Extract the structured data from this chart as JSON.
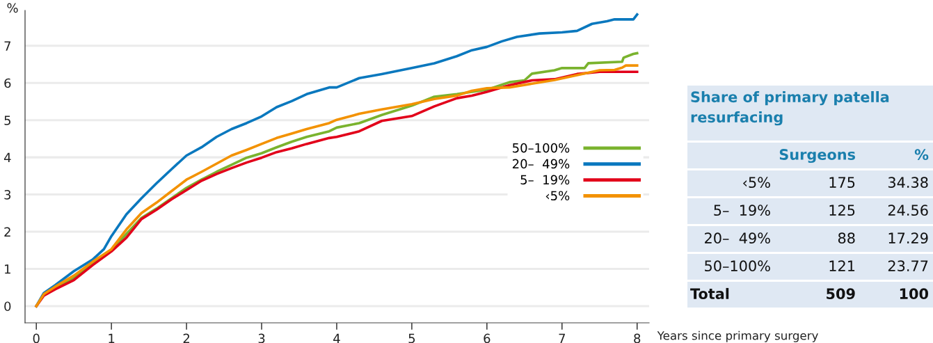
{
  "chart_data": [
    {
      "type": "line",
      "ylabel": "%",
      "xlabel": "Years since primary surgery",
      "xlim": [
        -0.15,
        8.16
      ],
      "ylim": [
        -0.45,
        7.95
      ],
      "xticks": [
        0,
        1,
        2,
        3,
        4,
        5,
        6,
        7,
        8
      ],
      "yticks": [
        0,
        1,
        2,
        3,
        4,
        5,
        6,
        7
      ],
      "grid": "y",
      "legend": "right",
      "line_style": "solid",
      "series": [
        {
          "name": "50–100%",
          "color": "#7ab32e",
          "x": [
            0,
            0.1,
            0.25,
            0.5,
            0.75,
            1.0,
            1.2,
            1.4,
            1.6,
            1.8,
            2.0,
            2.2,
            2.4,
            2.6,
            2.8,
            3.0,
            3.2,
            3.4,
            3.6,
            3.9,
            4.0,
            4.3,
            4.6,
            5.0,
            5.3,
            5.6,
            5.8,
            6.0,
            6.3,
            6.5,
            6.6,
            6.9,
            7.0,
            7.3,
            7.35,
            7.8,
            7.82,
            7.95,
            8.0
          ],
          "values": [
            0,
            0.3,
            0.5,
            0.76,
            1.13,
            1.5,
            1.94,
            2.37,
            2.62,
            2.9,
            3.18,
            3.4,
            3.61,
            3.8,
            3.99,
            4.11,
            4.27,
            4.42,
            4.55,
            4.7,
            4.8,
            4.92,
            5.14,
            5.39,
            5.63,
            5.7,
            5.76,
            5.82,
            6.02,
            6.07,
            6.25,
            6.34,
            6.4,
            6.4,
            6.53,
            6.57,
            6.68,
            6.78,
            6.8
          ]
        },
        {
          "name": "20–  49%",
          "color": "#0a78be",
          "x": [
            0,
            0.1,
            0.25,
            0.5,
            0.75,
            0.9,
            1.0,
            1.2,
            1.4,
            1.6,
            1.8,
            2.0,
            2.2,
            2.4,
            2.6,
            2.8,
            3.0,
            3.2,
            3.4,
            3.6,
            3.9,
            4.0,
            4.3,
            4.6,
            5.0,
            5.3,
            5.6,
            5.8,
            6.0,
            6.2,
            6.4,
            6.7,
            7.0,
            7.2,
            7.4,
            7.6,
            7.7,
            7.95,
            8.0
          ],
          "values": [
            0,
            0.35,
            0.56,
            0.94,
            1.25,
            1.53,
            1.88,
            2.47,
            2.9,
            3.3,
            3.68,
            4.05,
            4.27,
            4.55,
            4.76,
            4.92,
            5.1,
            5.35,
            5.51,
            5.7,
            5.88,
            5.88,
            6.13,
            6.24,
            6.4,
            6.53,
            6.72,
            6.88,
            6.97,
            7.12,
            7.24,
            7.33,
            7.36,
            7.4,
            7.59,
            7.66,
            7.71,
            7.71,
            7.84
          ]
        },
        {
          "name": "5–  19%",
          "color": "#e2001a",
          "x": [
            0,
            0.1,
            0.25,
            0.5,
            0.75,
            1.0,
            1.2,
            1.4,
            1.6,
            1.8,
            2.0,
            2.2,
            2.4,
            2.6,
            2.8,
            3.0,
            3.2,
            3.4,
            3.6,
            3.9,
            4.0,
            4.3,
            4.6,
            5.0,
            5.3,
            5.6,
            5.8,
            6.0,
            6.3,
            6.6,
            6.9,
            7.2,
            7.5,
            8.0
          ],
          "values": [
            0,
            0.28,
            0.45,
            0.7,
            1.1,
            1.47,
            1.84,
            2.34,
            2.59,
            2.87,
            3.12,
            3.37,
            3.55,
            3.71,
            3.86,
            3.99,
            4.14,
            4.24,
            4.36,
            4.52,
            4.55,
            4.7,
            4.98,
            5.11,
            5.37,
            5.59,
            5.66,
            5.76,
            5.94,
            6.07,
            6.1,
            6.24,
            6.3,
            6.3
          ]
        },
        {
          "name": "‹5%",
          "color": "#f39200",
          "x": [
            0,
            0.1,
            0.25,
            0.5,
            0.75,
            1.0,
            1.2,
            1.4,
            1.6,
            1.8,
            2.0,
            2.2,
            2.4,
            2.6,
            2.8,
            3.0,
            3.2,
            3.4,
            3.6,
            3.9,
            4.0,
            4.3,
            4.6,
            5.0,
            5.3,
            5.6,
            5.8,
            6.0,
            6.3,
            6.6,
            6.9,
            7.2,
            7.5,
            7.7,
            7.8,
            7.85,
            8.0
          ],
          "values": [
            0,
            0.32,
            0.52,
            0.82,
            1.19,
            1.53,
            2.06,
            2.5,
            2.78,
            3.09,
            3.4,
            3.61,
            3.83,
            4.05,
            4.2,
            4.36,
            4.52,
            4.64,
            4.76,
            4.92,
            5.01,
            5.17,
            5.29,
            5.43,
            5.57,
            5.66,
            5.79,
            5.86,
            5.88,
            5.98,
            6.08,
            6.21,
            6.34,
            6.35,
            6.41,
            6.47,
            6.47
          ]
        }
      ]
    },
    {
      "type": "other",
      "title": "Share of primary patella resurfacing",
      "data_labels": true,
      "categories": [
        "‹5%",
        "5–  19%",
        "20–  49%",
        "50–100%",
        "Total"
      ],
      "series": [
        {
          "name": "Surgeons",
          "values": [
            175,
            125,
            88,
            121,
            509
          ]
        },
        {
          "name": "%",
          "values": [
            34.38,
            24.56,
            17.29,
            23.77,
            100
          ]
        }
      ]
    }
  ]
}
